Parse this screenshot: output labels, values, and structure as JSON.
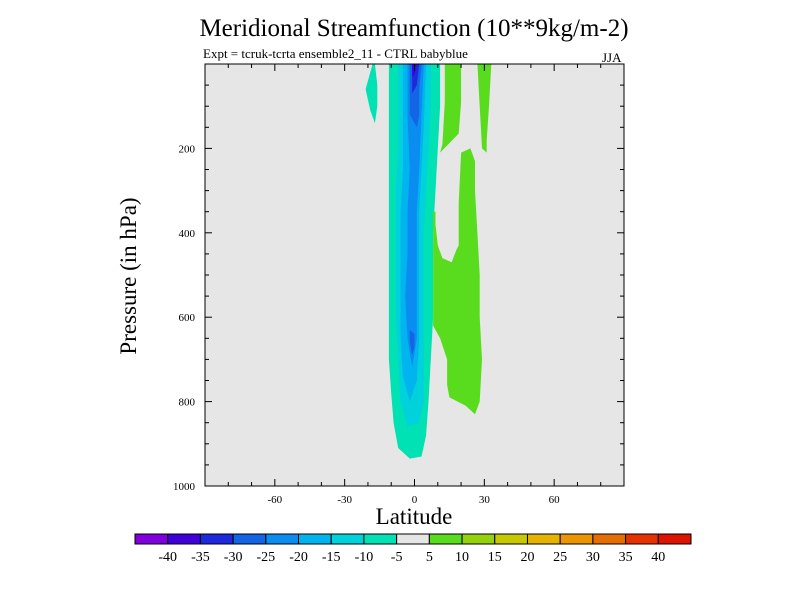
{
  "chart_data": {
    "type": "contour",
    "title": "Meridional Streamfunction (10**9kg/m-2)",
    "subtitle": "Expt = tcruk-tcrta  ensemble2_11 - CTRL babyblue",
    "season": "JJA",
    "xlabel": "Latitude",
    "ylabel": "Pressure (in hPa)",
    "xlim": [
      -90,
      90
    ],
    "ylim": [
      1000,
      0
    ],
    "x_ticks": [
      -60,
      -30,
      0,
      30,
      60
    ],
    "y_ticks": [
      200,
      400,
      600,
      800,
      1000
    ],
    "background_color": "#e6e6e6",
    "colorbar": {
      "levels": [
        -40,
        -35,
        -30,
        -25,
        -20,
        -15,
        -10,
        -5,
        5,
        10,
        15,
        20,
        25,
        30,
        35,
        40
      ],
      "colors": [
        "#7f00dc",
        "#3f00dc",
        "#1e28dc",
        "#1464e6",
        "#0a8cf0",
        "#00b4f0",
        "#00d2dc",
        "#00e1b4",
        "#e6e6e6",
        "#5adc1e",
        "#96d20a",
        "#c8c800",
        "#e6b400",
        "#eb9600",
        "#e66e00",
        "#e63200",
        "#dc1400"
      ]
    },
    "regions": [
      {
        "name": "NH cell -10 to -5",
        "color": "#00e1b4",
        "points": [
          [
            -2,
            935
          ],
          [
            -7,
            910
          ],
          [
            -9,
            850
          ],
          [
            -10,
            780
          ],
          [
            -11,
            700
          ],
          [
            -11,
            600
          ],
          [
            -11,
            500
          ],
          [
            -11,
            400
          ],
          [
            -11,
            300
          ],
          [
            -11,
            200
          ],
          [
            -11,
            100
          ],
          [
            -11,
            0
          ],
          [
            11,
            0
          ],
          [
            11,
            100
          ],
          [
            10,
            200
          ],
          [
            9,
            300
          ],
          [
            8,
            400
          ],
          [
            8,
            500
          ],
          [
            8,
            600
          ],
          [
            7,
            700
          ],
          [
            6,
            800
          ],
          [
            5,
            880
          ],
          [
            3,
            930
          ]
        ]
      },
      {
        "name": "NH cell -15 to -10",
        "color": "#00d2dc",
        "points": [
          [
            -3,
            860
          ],
          [
            -6,
            800
          ],
          [
            -7,
            700
          ],
          [
            -8,
            600
          ],
          [
            -8,
            500
          ],
          [
            -8,
            400
          ],
          [
            -8,
            300
          ],
          [
            -7,
            200
          ],
          [
            -7,
            100
          ],
          [
            -7,
            0
          ],
          [
            7,
            0
          ],
          [
            7,
            100
          ],
          [
            6,
            200
          ],
          [
            5,
            300
          ],
          [
            4,
            400
          ],
          [
            4,
            500
          ],
          [
            4,
            600
          ],
          [
            4,
            700
          ],
          [
            4,
            800
          ],
          [
            2,
            850
          ]
        ]
      },
      {
        "name": "NH cell -20 to -15",
        "color": "#00b4f0",
        "points": [
          [
            -2,
            800
          ],
          [
            -5,
            740
          ],
          [
            -6,
            650
          ],
          [
            -6,
            550
          ],
          [
            -6,
            450
          ],
          [
            -6,
            350
          ],
          [
            -5,
            250
          ],
          [
            -5,
            150
          ],
          [
            -5,
            0
          ],
          [
            5,
            0
          ],
          [
            4,
            150
          ],
          [
            3,
            250
          ],
          [
            2,
            350
          ],
          [
            2,
            450
          ],
          [
            2,
            550
          ],
          [
            2,
            650
          ],
          [
            1,
            750
          ]
        ]
      },
      {
        "name": "NH cell -25 to -20",
        "color": "#0a8cf0",
        "points": [
          [
            -1,
            720
          ],
          [
            -3,
            650
          ],
          [
            -4,
            550
          ],
          [
            -3,
            450
          ],
          [
            -3,
            350
          ],
          [
            -2,
            250
          ],
          [
            -3,
            120
          ],
          [
            -3,
            0
          ],
          [
            4,
            0
          ],
          [
            3,
            120
          ],
          [
            2,
            250
          ],
          [
            1,
            350
          ],
          [
            1,
            450
          ],
          [
            1,
            550
          ],
          [
            1,
            650
          ]
        ]
      },
      {
        "name": "NH cell -30 to -25",
        "color": "#1464e6",
        "points": [
          [
            -1,
            690
          ],
          [
            -2,
            660
          ],
          [
            -2,
            630
          ],
          [
            0,
            640
          ],
          [
            0,
            670
          ]
        ]
      },
      {
        "name": "NH cell upper -30 to -25",
        "color": "#1464e6",
        "points": [
          [
            -2,
            120
          ],
          [
            -2,
            40
          ],
          [
            -2,
            0
          ],
          [
            3,
            0
          ],
          [
            2,
            60
          ],
          [
            2,
            120
          ],
          [
            1,
            150
          ]
        ]
      },
      {
        "name": "NH cell upper -35 to -30",
        "color": "#1e28dc",
        "points": [
          [
            -1,
            70
          ],
          [
            -1,
            0
          ],
          [
            2,
            0
          ],
          [
            1,
            50
          ]
        ]
      },
      {
        "name": "NH cell upper -40 to -35",
        "color": "#3f00dc",
        "points": [
          [
            -1,
            30
          ],
          [
            -1,
            0
          ],
          [
            1,
            0
          ],
          [
            0,
            25
          ]
        ]
      },
      {
        "name": "SH upper cell -10 to -5",
        "color": "#00e1b4",
        "points": [
          [
            -18,
            0
          ],
          [
            -21,
            60
          ],
          [
            -19,
            110
          ],
          [
            -17,
            140
          ],
          [
            -16,
            100
          ],
          [
            -16,
            50
          ],
          [
            -17,
            0
          ]
        ]
      },
      {
        "name": "Upper +5 to +10 a",
        "color": "#5adc1e",
        "points": [
          [
            13,
            0
          ],
          [
            13,
            90
          ],
          [
            12,
            190
          ],
          [
            11,
            210
          ],
          [
            19,
            165
          ],
          [
            20,
            90
          ],
          [
            20,
            0
          ]
        ]
      },
      {
        "name": "Upper +5 to +10 b",
        "color": "#5adc1e",
        "points": [
          [
            27,
            0
          ],
          [
            30,
            0
          ],
          [
            33,
            0
          ],
          [
            32,
            100
          ],
          [
            31,
            180
          ],
          [
            31,
            210
          ],
          [
            29,
            200
          ],
          [
            28,
            100
          ]
        ]
      },
      {
        "name": "Mid +5 to +10",
        "color": "#5adc1e",
        "points": [
          [
            8,
            350
          ],
          [
            8,
            430
          ],
          [
            8,
            530
          ],
          [
            8,
            620
          ],
          [
            11,
            650
          ],
          [
            14,
            700
          ],
          [
            14,
            760
          ],
          [
            15,
            790
          ],
          [
            22,
            810
          ],
          [
            26,
            830
          ],
          [
            28,
            800
          ],
          [
            29,
            700
          ],
          [
            28,
            600
          ],
          [
            28,
            500
          ],
          [
            27,
            400
          ],
          [
            26,
            300
          ],
          [
            26,
            230
          ],
          [
            24,
            200
          ],
          [
            20,
            210
          ],
          [
            19,
            330
          ],
          [
            19,
            430
          ],
          [
            18,
            440
          ],
          [
            16,
            470
          ],
          [
            12,
            460
          ],
          [
            10,
            430
          ],
          [
            9,
            380
          ],
          [
            9,
            350
          ]
        ]
      }
    ]
  }
}
